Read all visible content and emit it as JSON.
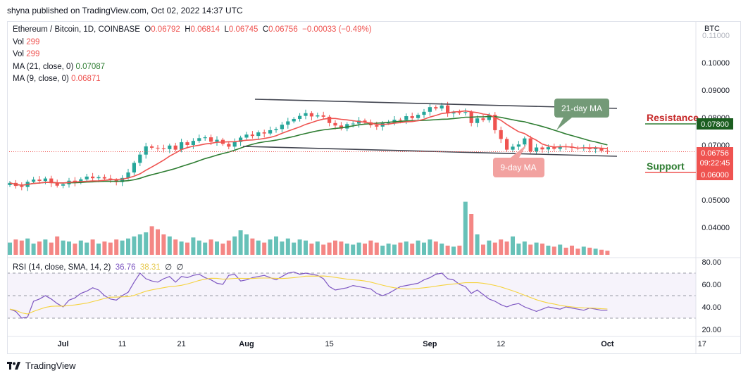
{
  "publisher": "shyna published on TradingView.com, Oct 02, 2022 14:37 UTC",
  "legend": {
    "symbol": "Ethereum / Bitcoin, 1D, COINBASE",
    "o_label": "O",
    "o": "0.06792",
    "h_label": "H",
    "h": "0.06814",
    "l_label": "L",
    "l": "0.06745",
    "c_label": "C",
    "c": "0.06756",
    "change": "−0.00033 (−0.49%)",
    "vol1_label": "Vol",
    "vol1": "299",
    "vol2_label": "Vol",
    "vol2": "299",
    "ma21_label": "MA (21, close, 0)",
    "ma21": "0.07087",
    "ma9_label": "MA (9, close, 0)",
    "ma9": "0.06871"
  },
  "rsi_legend": {
    "label": "RSI (14, close, SMA, 14, 2)",
    "rsi": "36.76",
    "sma": "38.31",
    "x1": "∅",
    "x2": "∅"
  },
  "currency": "BTC",
  "annotations": {
    "ma21": "21-day MA",
    "ma9": "9-day MA",
    "resistance": "Resistance",
    "support": "Support",
    "resistance_price": "0.07800",
    "support_price": "0.06000",
    "last_price": "0.06756",
    "countdown": "09:22:45"
  },
  "colors": {
    "up": "#26a69a",
    "down": "#ef5350",
    "ma21": "#2e7d32",
    "ma9": "#ef5350",
    "rsi": "#7e57c2",
    "rsi_sma": "#f5d33f"
  },
  "footer": {
    "brand": "TradingView"
  },
  "chart_data": {
    "type": "candlestick",
    "price_axis": {
      "ticks": [
        "0.11000",
        "0.10000",
        "0.09000",
        "0.08000",
        "0.07000",
        "0.06000",
        "0.05000",
        "0.04000"
      ],
      "values": [
        0.11,
        0.1,
        0.09,
        0.08,
        0.07,
        0.06,
        0.05,
        0.04
      ]
    },
    "rsi_axis": {
      "ticks": [
        "80.00",
        "60.00",
        "40.00",
        "20.00"
      ],
      "values": [
        80,
        60,
        40,
        20
      ],
      "bands": [
        70,
        50,
        30
      ]
    },
    "time_axis": {
      "labels": [
        "Jul",
        "11",
        "21",
        "Aug",
        "15",
        "Sep",
        "12",
        "Oct",
        "17"
      ],
      "day_index": [
        9,
        19,
        29,
        40,
        54,
        71,
        83,
        101,
        117
      ]
    },
    "closes": [
      0.0562,
      0.0551,
      0.0547,
      0.0566,
      0.0574,
      0.0569,
      0.0578,
      0.0561,
      0.0552,
      0.0557,
      0.057,
      0.0564,
      0.0575,
      0.0585,
      0.0579,
      0.0583,
      0.0578,
      0.0572,
      0.0565,
      0.058,
      0.06,
      0.0635,
      0.0665,
      0.0695,
      0.069,
      0.0688,
      0.0685,
      0.0698,
      0.0683,
      0.071,
      0.07,
      0.0715,
      0.0725,
      0.0728,
      0.0712,
      0.0719,
      0.0704,
      0.0694,
      0.0711,
      0.0727,
      0.0738,
      0.0733,
      0.0746,
      0.0742,
      0.0754,
      0.0758,
      0.0774,
      0.0786,
      0.0795,
      0.0806,
      0.0816,
      0.0804,
      0.0808,
      0.0803,
      0.078,
      0.0771,
      0.076,
      0.0776,
      0.0778,
      0.0789,
      0.0783,
      0.0772,
      0.0767,
      0.078,
      0.0781,
      0.0792,
      0.0791,
      0.0805,
      0.0798,
      0.081,
      0.0821,
      0.0838,
      0.0833,
      0.0844,
      0.0815,
      0.0819,
      0.0817,
      0.082,
      0.078,
      0.0797,
      0.0791,
      0.081,
      0.0754,
      0.0722,
      0.0683,
      0.0694,
      0.0702,
      0.0724,
      0.0677,
      0.0691,
      0.0684,
      0.0692,
      0.0686,
      0.0695,
      0.0694,
      0.069,
      0.0688,
      0.0691,
      0.0685,
      0.0689,
      0.0679,
      0.0676
    ],
    "volume": [
      12,
      15,
      14,
      16,
      11,
      13,
      15,
      12,
      18,
      14,
      13,
      11,
      14,
      12,
      15,
      11,
      13,
      12,
      15,
      14,
      16,
      18,
      20,
      22,
      28,
      25,
      20,
      18,
      15,
      13,
      12,
      17,
      14,
      12,
      15,
      13,
      11,
      14,
      18,
      24,
      20,
      16,
      14,
      12,
      15,
      18,
      13,
      16,
      12,
      15,
      14,
      11,
      13,
      10,
      12,
      14,
      13,
      11,
      10,
      12,
      11,
      14,
      12,
      9,
      11,
      10,
      12,
      13,
      11,
      14,
      12,
      15,
      13,
      11,
      9,
      8,
      9,
      52,
      40,
      20,
      10,
      14,
      12,
      15,
      13,
      18,
      11,
      13,
      10,
      12,
      11,
      9,
      8,
      10,
      7,
      9,
      6,
      8,
      7,
      6,
      5,
      4
    ],
    "rsi": [
      38,
      36,
      30,
      31,
      45,
      47,
      50,
      47,
      43,
      40,
      46,
      48,
      52,
      54,
      57,
      55,
      50,
      47,
      46,
      50,
      53,
      62,
      70,
      65,
      63,
      62,
      65,
      67,
      62,
      67,
      66,
      68,
      69,
      66,
      64,
      61,
      60,
      68,
      69,
      63,
      64,
      66,
      67,
      68,
      66,
      64,
      67,
      70,
      71,
      69,
      70,
      69,
      68,
      65,
      58,
      55,
      56,
      57,
      59,
      58,
      57,
      56,
      52,
      50,
      52,
      55,
      58,
      59,
      60,
      61,
      64,
      66,
      69,
      70,
      65,
      64,
      60,
      58,
      52,
      55,
      51,
      47,
      45,
      42,
      40,
      42,
      43,
      40,
      38,
      36,
      38,
      40,
      39,
      38,
      40,
      39,
      38,
      37,
      39,
      38,
      37,
      37
    ],
    "ma9_last": 0.06871,
    "ma21_last": 0.07087
  }
}
